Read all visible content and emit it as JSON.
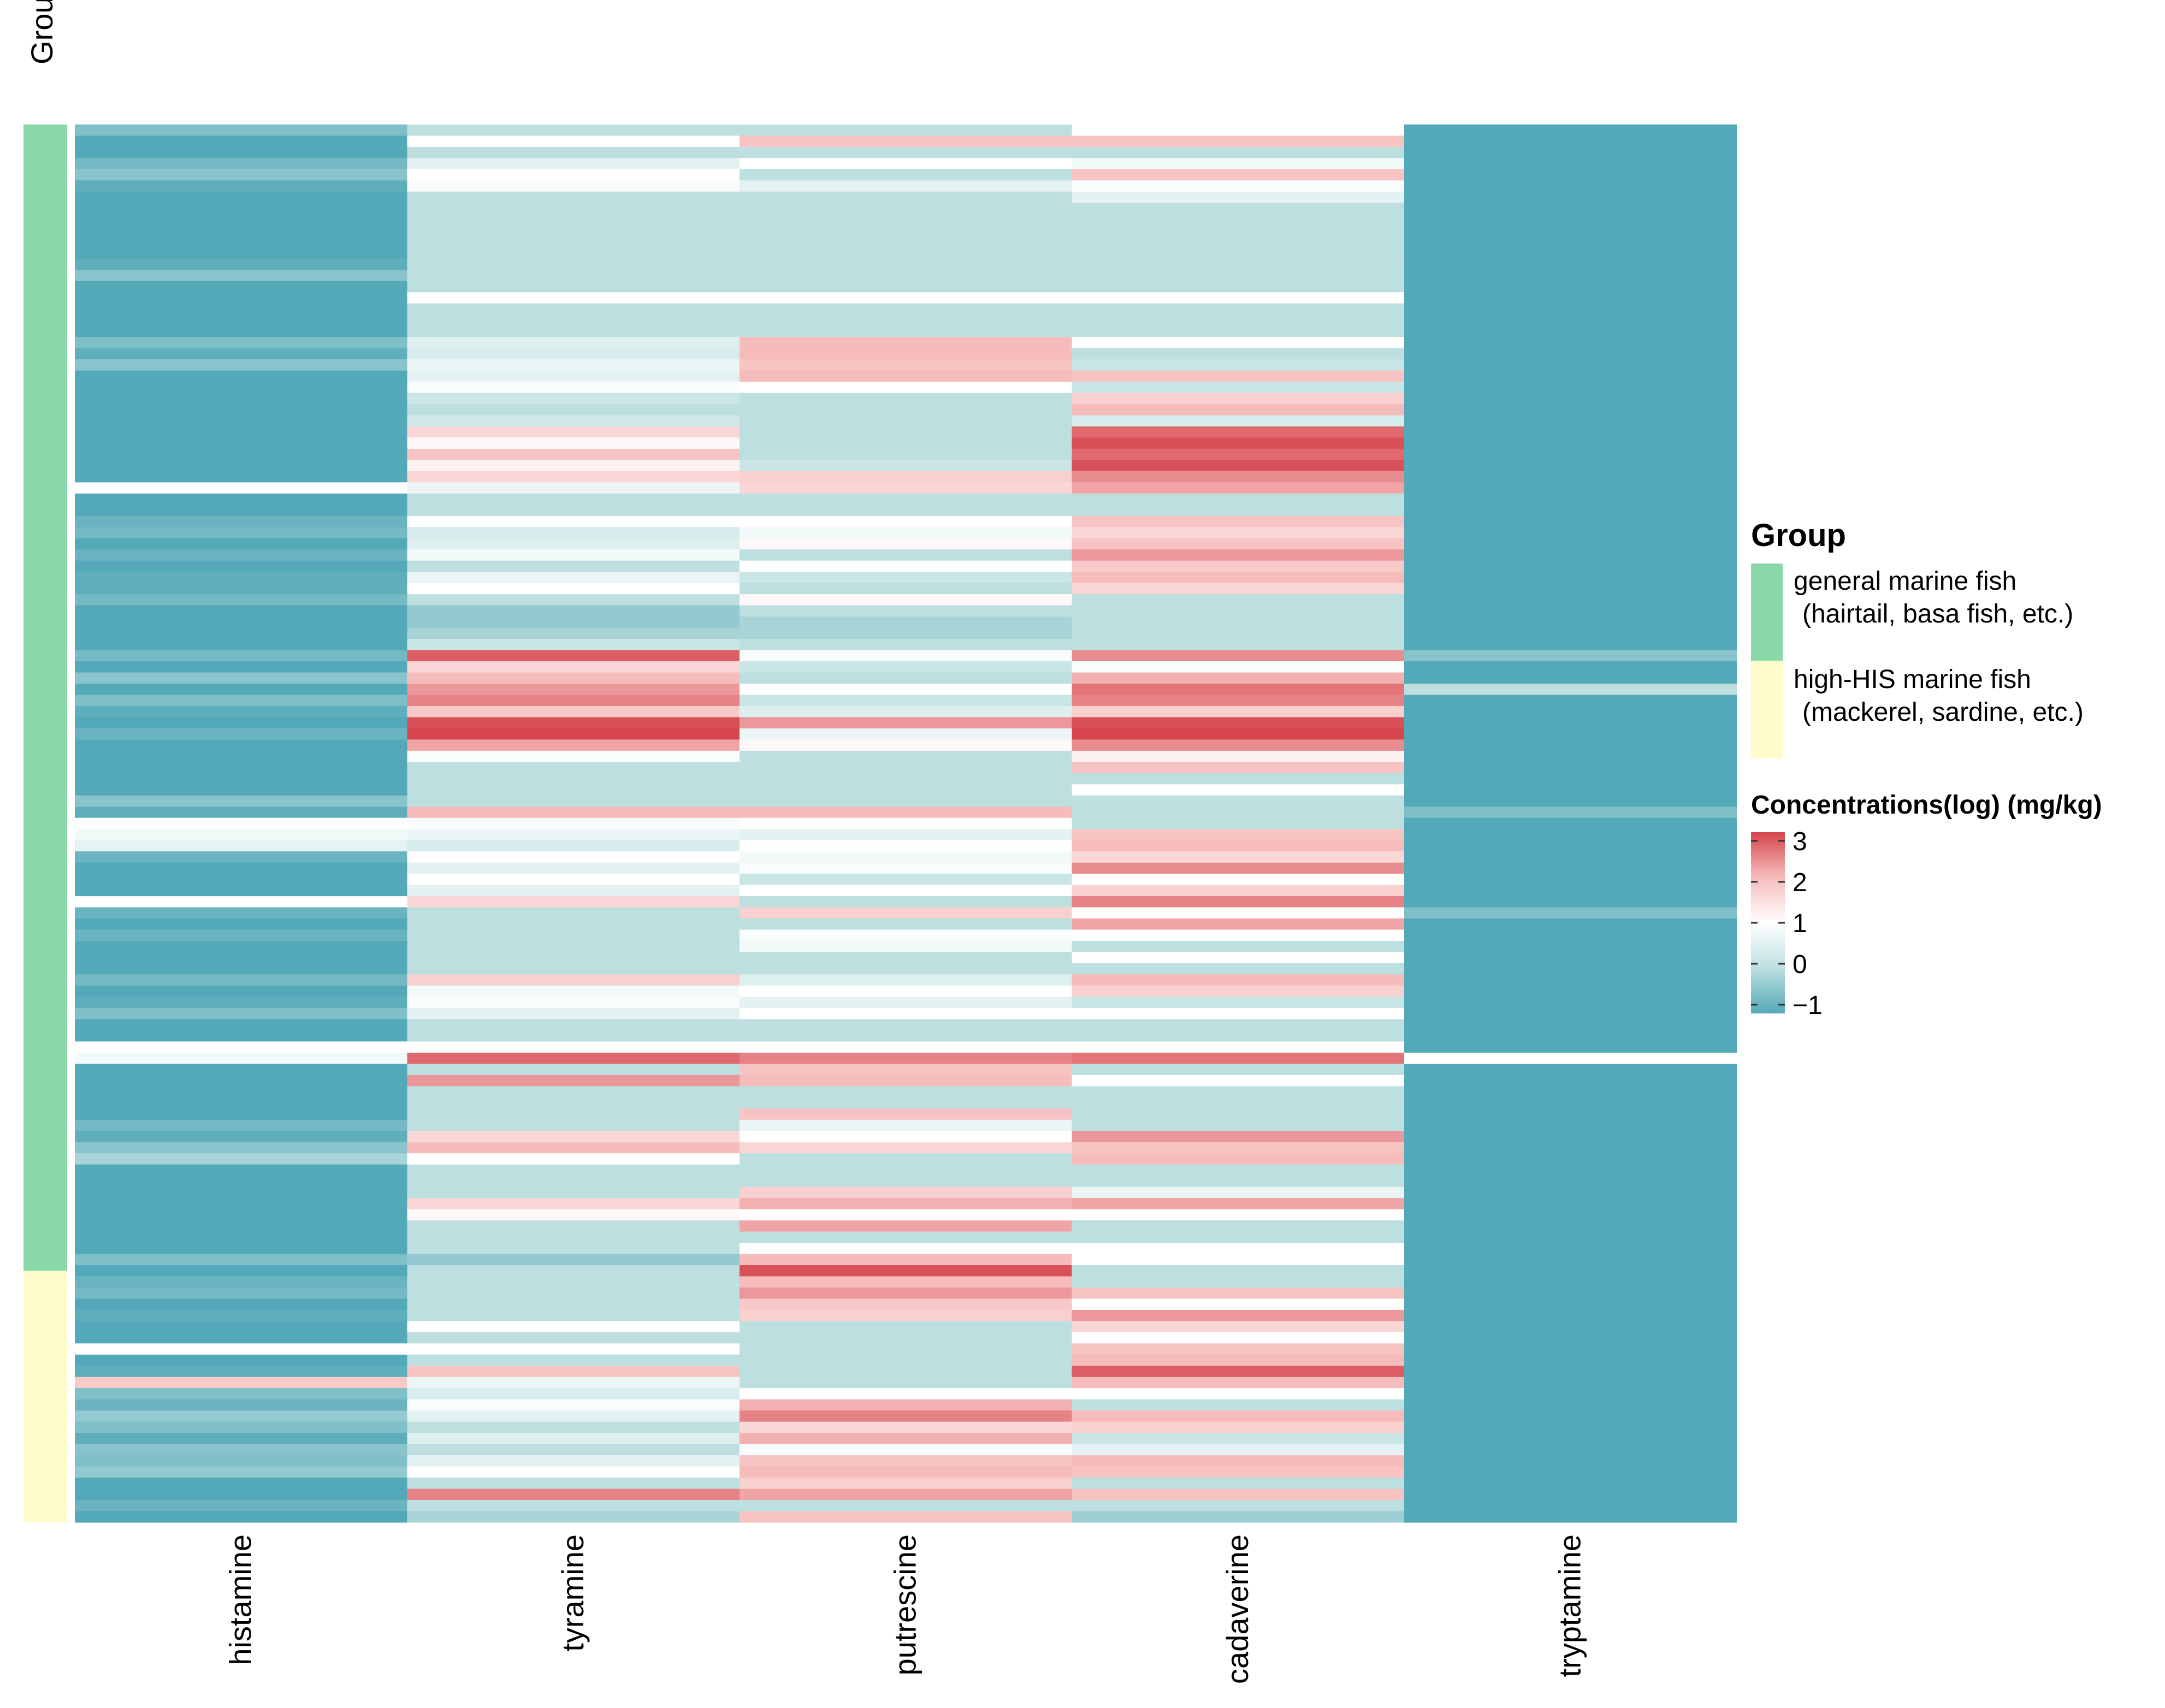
{
  "chart_data": {
    "type": "heatmap",
    "columns": [
      "histamine",
      "tyramine",
      "putrescine",
      "cadaverine",
      "tryptamine"
    ],
    "group_annotation": {
      "title": "Group",
      "levels": [
        {
          "name": "general marine fish",
          "detail": "(hairtail, basa fish, etc.)",
          "color": "#88d8a8",
          "fraction": 0.82
        },
        {
          "name": "high-HIS marine fish",
          "detail": "(mackerel, sardine, etc.)",
          "color": "#fffccc",
          "fraction": 0.18
        }
      ]
    },
    "row_count": 125,
    "values": [
      [
        -0.6,
        0.0,
        0.0,
        1.0,
        -1.0
      ],
      [
        -1.0,
        1.0,
        1.9,
        1.9,
        -1.0
      ],
      [
        -1.0,
        0.0,
        0.0,
        0.0,
        -1.0
      ],
      [
        -0.7,
        0.6,
        1.0,
        0.8,
        -1.0
      ],
      [
        -0.5,
        1.0,
        0.0,
        1.9,
        -1.0
      ],
      [
        -0.9,
        0.9,
        0.6,
        0.9,
        -1.0
      ],
      [
        -1.0,
        0.0,
        0.0,
        0.6,
        -1.0
      ],
      [
        -1.0,
        0.0,
        0.0,
        0.0,
        -1.0
      ],
      [
        -1.0,
        0.0,
        0.0,
        0.0,
        -1.0
      ],
      [
        -1.0,
        0.0,
        0.0,
        0.0,
        -1.0
      ],
      [
        -1.0,
        0.0,
        0.0,
        0.0,
        -1.0
      ],
      [
        -1.0,
        0.0,
        0.0,
        0.0,
        -1.0
      ],
      [
        -0.9,
        0.0,
        0.0,
        0.0,
        -1.0
      ],
      [
        -0.5,
        0.0,
        0.0,
        0.0,
        -1.0
      ],
      [
        -1.0,
        0.0,
        0.0,
        0.0,
        -1.0
      ],
      [
        -1.0,
        1.0,
        1.0,
        1.0,
        -1.0
      ],
      [
        -1.0,
        0.0,
        0.0,
        0.0,
        -1.0
      ],
      [
        -1.0,
        0.0,
        0.0,
        0.0,
        -1.0
      ],
      [
        -1.0,
        0.0,
        0.0,
        0.0,
        -1.0
      ],
      [
        -0.6,
        0.5,
        2.0,
        1.0,
        -1.0
      ],
      [
        -0.9,
        0.4,
        2.0,
        0.0,
        -1.0
      ],
      [
        -0.5,
        0.7,
        1.9,
        0.2,
        -1.0
      ],
      [
        -1.0,
        0.6,
        2.0,
        1.9,
        -1.0
      ],
      [
        -1.0,
        0.9,
        1.0,
        0.2,
        -1.0
      ],
      [
        -1.0,
        0.2,
        0.0,
        1.7,
        -1.0
      ],
      [
        -1.0,
        0.0,
        0.0,
        2.0,
        -1.0
      ],
      [
        -1.0,
        0.3,
        0.0,
        0.4,
        -1.0
      ],
      [
        -1.0,
        1.6,
        0.0,
        2.7,
        -1.0
      ],
      [
        -1.0,
        1.1,
        0.0,
        2.9,
        -1.0
      ],
      [
        -1.0,
        1.9,
        0.0,
        2.7,
        -1.0
      ],
      [
        -1.0,
        1.2,
        0.2,
        2.9,
        -1.0
      ],
      [
        -1.0,
        1.6,
        1.7,
        2.4,
        -1.0
      ],
      [
        1.0,
        0.7,
        1.6,
        2.2,
        -1.0
      ],
      [
        -1.0,
        0.0,
        0.0,
        0.0,
        -1.0
      ],
      [
        -1.0,
        0.0,
        0.0,
        0.0,
        -1.0
      ],
      [
        -0.8,
        1.0,
        1.0,
        1.9,
        -1.0
      ],
      [
        -0.7,
        0.4,
        0.8,
        1.6,
        -1.0
      ],
      [
        -1.0,
        0.5,
        1.1,
        1.9,
        -1.0
      ],
      [
        -0.8,
        0.8,
        0.0,
        2.3,
        -1.0
      ],
      [
        -1.0,
        0.0,
        1.0,
        1.8,
        -1.0
      ],
      [
        -0.9,
        0.7,
        0.2,
        2.0,
        -1.0
      ],
      [
        -0.9,
        1.0,
        0.0,
        1.6,
        -1.0
      ],
      [
        -0.7,
        0.0,
        1.1,
        0.0,
        -1.0
      ],
      [
        -1.0,
        -0.4,
        0.0,
        0.0,
        -1.0
      ],
      [
        -1.0,
        -0.4,
        -0.2,
        0.0,
        -1.0
      ],
      [
        -1.0,
        -0.2,
        -0.2,
        0.0,
        -1.0
      ],
      [
        -1.0,
        0.2,
        0.0,
        0.0,
        -1.0
      ],
      [
        -0.7,
        2.8,
        0.9,
        2.4,
        -0.5
      ],
      [
        -1.0,
        1.6,
        0.2,
        0.9,
        -1.0
      ],
      [
        -0.5,
        2.0,
        0.0,
        2.1,
        -1.0
      ],
      [
        -1.0,
        2.3,
        1.0,
        2.6,
        0.0
      ],
      [
        -0.6,
        2.5,
        0.2,
        2.5,
        -1.0
      ],
      [
        -0.9,
        1.8,
        0.5,
        1.7,
        -1.0
      ],
      [
        -1.0,
        2.9,
        2.3,
        2.9,
        -1.0
      ],
      [
        -0.8,
        3.0,
        0.7,
        3.0,
        -1.0
      ],
      [
        -1.0,
        2.2,
        1.1,
        2.4,
        -1.0
      ],
      [
        -1.0,
        0.9,
        0.0,
        1.2,
        -1.0
      ],
      [
        -1.0,
        0.0,
        0.0,
        1.9,
        -1.0
      ],
      [
        -1.0,
        0.0,
        0.0,
        0.0,
        -1.0
      ],
      [
        -1.0,
        0.0,
        0.0,
        1.0,
        -1.0
      ],
      [
        -0.5,
        0.0,
        0.0,
        0.0,
        -1.0
      ],
      [
        -0.9,
        2.0,
        2.0,
        0.0,
        -0.6
      ],
      [
        1.0,
        0.9,
        1.0,
        0.0,
        -1.0
      ],
      [
        0.8,
        0.7,
        0.6,
        1.9,
        -1.0
      ],
      [
        0.6,
        0.4,
        1.0,
        2.0,
        -1.0
      ],
      [
        -0.8,
        1.0,
        0.8,
        1.6,
        -1.0
      ],
      [
        -1.0,
        0.6,
        0.9,
        2.4,
        -1.0
      ],
      [
        -1.0,
        1.0,
        0.2,
        1.0,
        -1.0
      ],
      [
        -1.0,
        0.6,
        1.0,
        1.7,
        -1.0
      ],
      [
        1.0,
        1.6,
        0.0,
        2.5,
        -1.0
      ],
      [
        -0.8,
        0.0,
        1.7,
        1.0,
        -0.6
      ],
      [
        -1.0,
        0.0,
        0.0,
        2.2,
        -1.0
      ],
      [
        -0.8,
        0.0,
        0.9,
        1.0,
        -1.0
      ],
      [
        -1.0,
        0.0,
        0.8,
        0.0,
        -1.0
      ],
      [
        -1.0,
        0.0,
        0.0,
        1.0,
        -1.0
      ],
      [
        -1.0,
        0.0,
        0.0,
        0.0,
        -1.0
      ],
      [
        -0.7,
        1.7,
        0.5,
        2.0,
        -1.0
      ],
      [
        -1.0,
        0.8,
        1.0,
        1.7,
        -1.0
      ],
      [
        -0.9,
        0.9,
        0.6,
        0.2,
        -1.0
      ],
      [
        -0.6,
        0.6,
        1.0,
        1.0,
        -1.0
      ],
      [
        -1.0,
        0.0,
        0.0,
        0.0,
        -1.0
      ],
      [
        -1.0,
        0.0,
        0.0,
        0.0,
        -1.0
      ],
      [
        1.0,
        1.0,
        1.0,
        1.0,
        -1.0
      ],
      [
        0.8,
        2.7,
        2.5,
        2.6,
        1.0
      ],
      [
        -1.0,
        0.0,
        1.9,
        0.0,
        -1.0
      ],
      [
        -1.0,
        2.3,
        2.0,
        1.0,
        -1.0
      ],
      [
        -1.0,
        0.0,
        0.0,
        0.0,
        -1.0
      ],
      [
        -1.0,
        0.0,
        0.0,
        0.0,
        -1.0
      ],
      [
        -1.0,
        0.0,
        1.9,
        0.0,
        -1.0
      ],
      [
        -0.7,
        0.0,
        0.7,
        0.0,
        -1.0
      ],
      [
        -0.9,
        1.6,
        1.0,
        2.3,
        -1.0
      ],
      [
        -0.5,
        2.0,
        1.6,
        1.9,
        -1.0
      ],
      [
        -0.2,
        1.0,
        0.0,
        2.0,
        -1.0
      ],
      [
        -1.0,
        0.0,
        0.0,
        0.0,
        -1.0
      ],
      [
        -1.0,
        0.0,
        0.0,
        0.0,
        -1.0
      ],
      [
        -1.0,
        0.0,
        1.7,
        0.7,
        -1.0
      ],
      [
        -1.0,
        1.6,
        2.1,
        2.2,
        -1.0
      ],
      [
        -1.0,
        1.1,
        1.0,
        1.0,
        -1.0
      ],
      [
        -1.0,
        0.0,
        2.2,
        0.0,
        -1.0
      ],
      [
        -1.0,
        0.0,
        0.0,
        0.0,
        -1.0
      ],
      [
        -1.0,
        0.0,
        1.0,
        1.0,
        -1.0
      ],
      [
        -0.6,
        -0.4,
        2.0,
        1.0,
        -1.0
      ],
      [
        -1.0,
        0.0,
        2.9,
        0.0,
        -1.0
      ],
      [
        -0.8,
        0.0,
        2.0,
        0.0,
        -1.0
      ],
      [
        -0.7,
        0.0,
        2.3,
        1.9,
        -1.0
      ],
      [
        -1.0,
        0.0,
        1.8,
        1.0,
        -1.0
      ],
      [
        -0.9,
        0.0,
        1.7,
        2.3,
        -1.0
      ],
      [
        -1.0,
        1.0,
        0.0,
        1.6,
        -1.0
      ],
      [
        -1.0,
        0.0,
        0.0,
        1.0,
        -1.0
      ],
      [
        1.0,
        1.0,
        0.0,
        1.9,
        -1.0
      ],
      [
        -1.0,
        0.0,
        0.0,
        2.0,
        -1.0
      ],
      [
        -0.9,
        1.9,
        0.0,
        2.8,
        -1.0
      ],
      [
        1.8,
        0.7,
        0.0,
        2.0,
        -1.0
      ],
      [
        -0.6,
        0.4,
        1.0,
        1.0,
        -1.0
      ],
      [
        -0.8,
        0.9,
        2.1,
        0.0,
        -1.0
      ],
      [
        -0.4,
        0.6,
        2.5,
        2.0,
        -1.0
      ],
      [
        -0.6,
        0.0,
        1.6,
        1.7,
        -1.0
      ],
      [
        -0.9,
        0.5,
        2.1,
        0.2,
        -1.0
      ],
      [
        -0.5,
        0.0,
        0.9,
        0.6,
        -1.0
      ],
      [
        -0.6,
        0.6,
        1.9,
        2.0,
        -1.0
      ],
      [
        -0.4,
        1.0,
        2.0,
        1.9,
        -1.0
      ],
      [
        -1.0,
        0.0,
        1.7,
        0.0,
        -1.0
      ],
      [
        -1.0,
        2.5,
        2.2,
        1.9,
        -1.0
      ],
      [
        -0.8,
        0.0,
        0.0,
        0.0,
        -1.0
      ],
      [
        -1.0,
        -0.2,
        1.9,
        -0.3,
        -1.0
      ]
    ],
    "legend": {
      "title": "Concentrations(log) (mg/kg)",
      "ticks": [
        "3",
        "2",
        "1",
        "0",
        "−1"
      ],
      "range": [
        -1,
        3
      ],
      "colors": {
        "low": "#54a9b8",
        "mid_low": "#bddfe0",
        "mid": "#ffffff",
        "mid_high": "#f6bcbc",
        "high": "#d6454d"
      }
    }
  }
}
